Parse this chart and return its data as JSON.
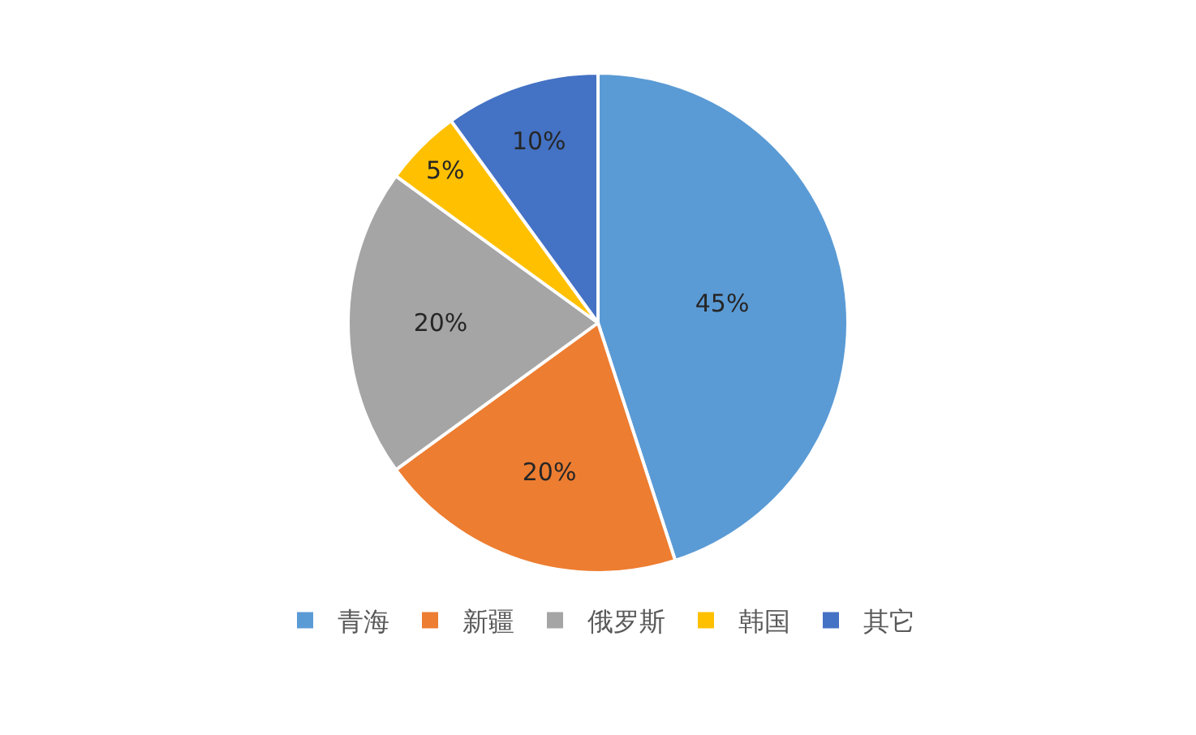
{
  "chart_data": {
    "type": "pie",
    "categories": [
      "青海",
      "新疆",
      "俄罗斯",
      "韩国",
      "其它"
    ],
    "values": [
      45,
      20,
      20,
      5,
      10
    ],
    "colors": [
      "#5b9bd5",
      "#ed7d31",
      "#a5a5a5",
      "#ffc000",
      "#4472c4"
    ],
    "value_labels": [
      "45%",
      "20%",
      "20%",
      "5%",
      "10%"
    ],
    "legend": "bottom"
  }
}
